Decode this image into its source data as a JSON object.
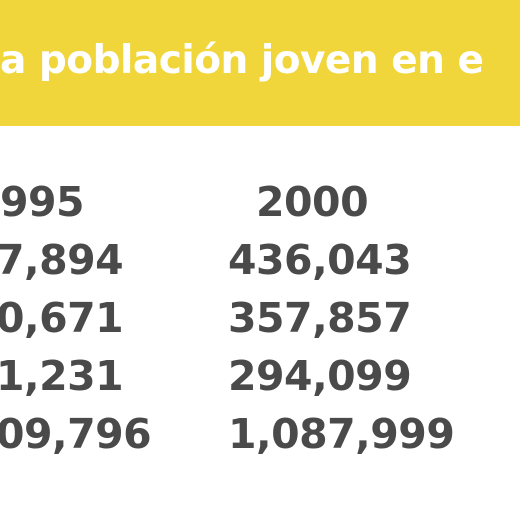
{
  "header": {
    "title": "a población joven en e"
  },
  "table": {
    "columns": [
      "995",
      "2000"
    ],
    "rows": [
      [
        "7,894",
        "436,043"
      ],
      [
        "0,671",
        "357,857"
      ],
      [
        "1,231",
        "294,099"
      ],
      [
        "09,796",
        "1,087,999"
      ]
    ]
  }
}
